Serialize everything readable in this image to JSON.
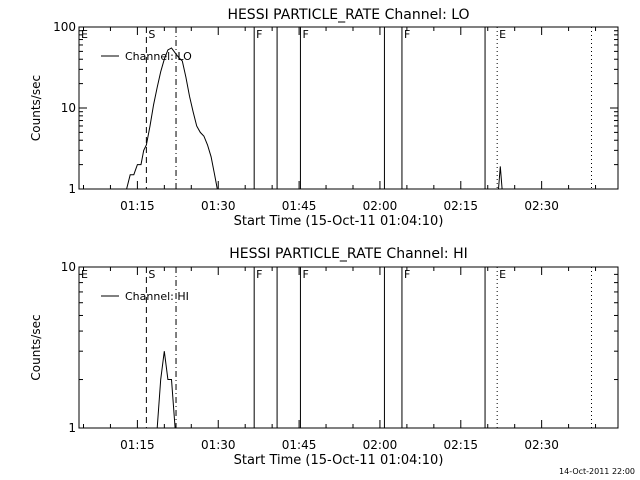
{
  "footer_timestamp": "14-Oct-2011 22:00",
  "chart_data": [
    {
      "type": "line",
      "title": "HESSI PARTICLE_RATE Channel: LO",
      "xlabel": "Start Time (15-Oct-11 01:04:10)",
      "ylabel": "Counts/sec",
      "y_scale": "log",
      "xlim": [
        "01:04:10",
        "02:44:10"
      ],
      "ylim": [
        1,
        100
      ],
      "x_ticks": [
        "01:15",
        "01:30",
        "01:45",
        "02:00",
        "02:15",
        "02:30"
      ],
      "y_ticks": [
        "1",
        "10",
        "100"
      ],
      "legend": {
        "location": "top-left",
        "entries": [
          "Channel: LO"
        ]
      },
      "series": [
        {
          "name": "Channel: LO",
          "x": [
            "01:13:00",
            "01:13:40",
            "01:14:20",
            "01:15:00",
            "01:15:40",
            "01:16:10",
            "01:16:40",
            "01:17:20",
            "01:18:00",
            "01:18:40",
            "01:19:20",
            "01:20:00",
            "01:20:40",
            "01:21:20",
            "01:22:00",
            "01:22:40",
            "01:23:20",
            "01:24:00",
            "01:24:40",
            "01:25:20",
            "01:26:00",
            "01:26:40",
            "01:27:20",
            "01:28:00",
            "01:28:40",
            "01:29:20",
            "01:29:50"
          ],
          "y": [
            1,
            1.5,
            1.5,
            2,
            2,
            3,
            3.5,
            6,
            11,
            18,
            28,
            40,
            52,
            55,
            48,
            42,
            38,
            24,
            14,
            9,
            6,
            5,
            4.5,
            3.5,
            2.5,
            1.5,
            1
          ]
        },
        {
          "name": "",
          "x": [
            "02:22:00",
            "02:22:20",
            "02:22:40"
          ],
          "y": [
            1,
            1.9,
            1
          ]
        }
      ],
      "flag_lines": [
        {
          "label": "E",
          "time": "01:04:10",
          "style": "solid"
        },
        {
          "label": "S",
          "time": "01:16:40",
          "style": "dashed"
        },
        {
          "label": "",
          "time": "01:22:10",
          "style": "dashdot"
        },
        {
          "label": "F",
          "time": "01:36:40",
          "style": "solid"
        },
        {
          "label": "",
          "time": "01:40:55",
          "style": "solid"
        },
        {
          "label": "F",
          "time": "01:45:15",
          "style": "solid"
        },
        {
          "label": "",
          "time": "02:00:50",
          "style": "solid"
        },
        {
          "label": "F",
          "time": "02:04:05",
          "style": "solid"
        },
        {
          "label": "",
          "time": "02:19:30",
          "style": "solid"
        },
        {
          "label": "E",
          "time": "02:21:45",
          "style": "dotted"
        },
        {
          "label": "",
          "time": "02:39:15",
          "style": "dotted"
        }
      ]
    },
    {
      "type": "line",
      "title": "HESSI PARTICLE_RATE Channel: HI",
      "xlabel": "Start Time (15-Oct-11 01:04:10)",
      "ylabel": "Counts/sec",
      "y_scale": "log",
      "xlim": [
        "01:04:10",
        "02:44:10"
      ],
      "ylim": [
        1,
        10
      ],
      "x_ticks": [
        "01:15",
        "01:30",
        "01:45",
        "02:00",
        "02:15",
        "02:30"
      ],
      "y_ticks": [
        "1",
        "10"
      ],
      "legend": {
        "location": "top-left",
        "entries": [
          "Channel: HI"
        ]
      },
      "series": [
        {
          "name": "Channel: HI",
          "x": [
            "01:18:40",
            "01:19:20",
            "01:20:00",
            "01:20:40",
            "01:21:20",
            "01:22:00"
          ],
          "y": [
            1,
            2,
            3,
            2,
            2,
            1
          ]
        }
      ],
      "flag_lines": [
        {
          "label": "E",
          "time": "01:04:10",
          "style": "solid"
        },
        {
          "label": "S",
          "time": "01:16:40",
          "style": "dashed"
        },
        {
          "label": "",
          "time": "01:22:10",
          "style": "dashdot"
        },
        {
          "label": "F",
          "time": "01:36:40",
          "style": "solid"
        },
        {
          "label": "",
          "time": "01:40:55",
          "style": "solid"
        },
        {
          "label": "F",
          "time": "01:45:15",
          "style": "solid"
        },
        {
          "label": "",
          "time": "02:00:50",
          "style": "solid"
        },
        {
          "label": "F",
          "time": "02:04:05",
          "style": "solid"
        },
        {
          "label": "",
          "time": "02:19:30",
          "style": "solid"
        },
        {
          "label": "E",
          "time": "02:21:45",
          "style": "dotted"
        },
        {
          "label": "",
          "time": "02:39:15",
          "style": "dotted"
        }
      ]
    }
  ]
}
